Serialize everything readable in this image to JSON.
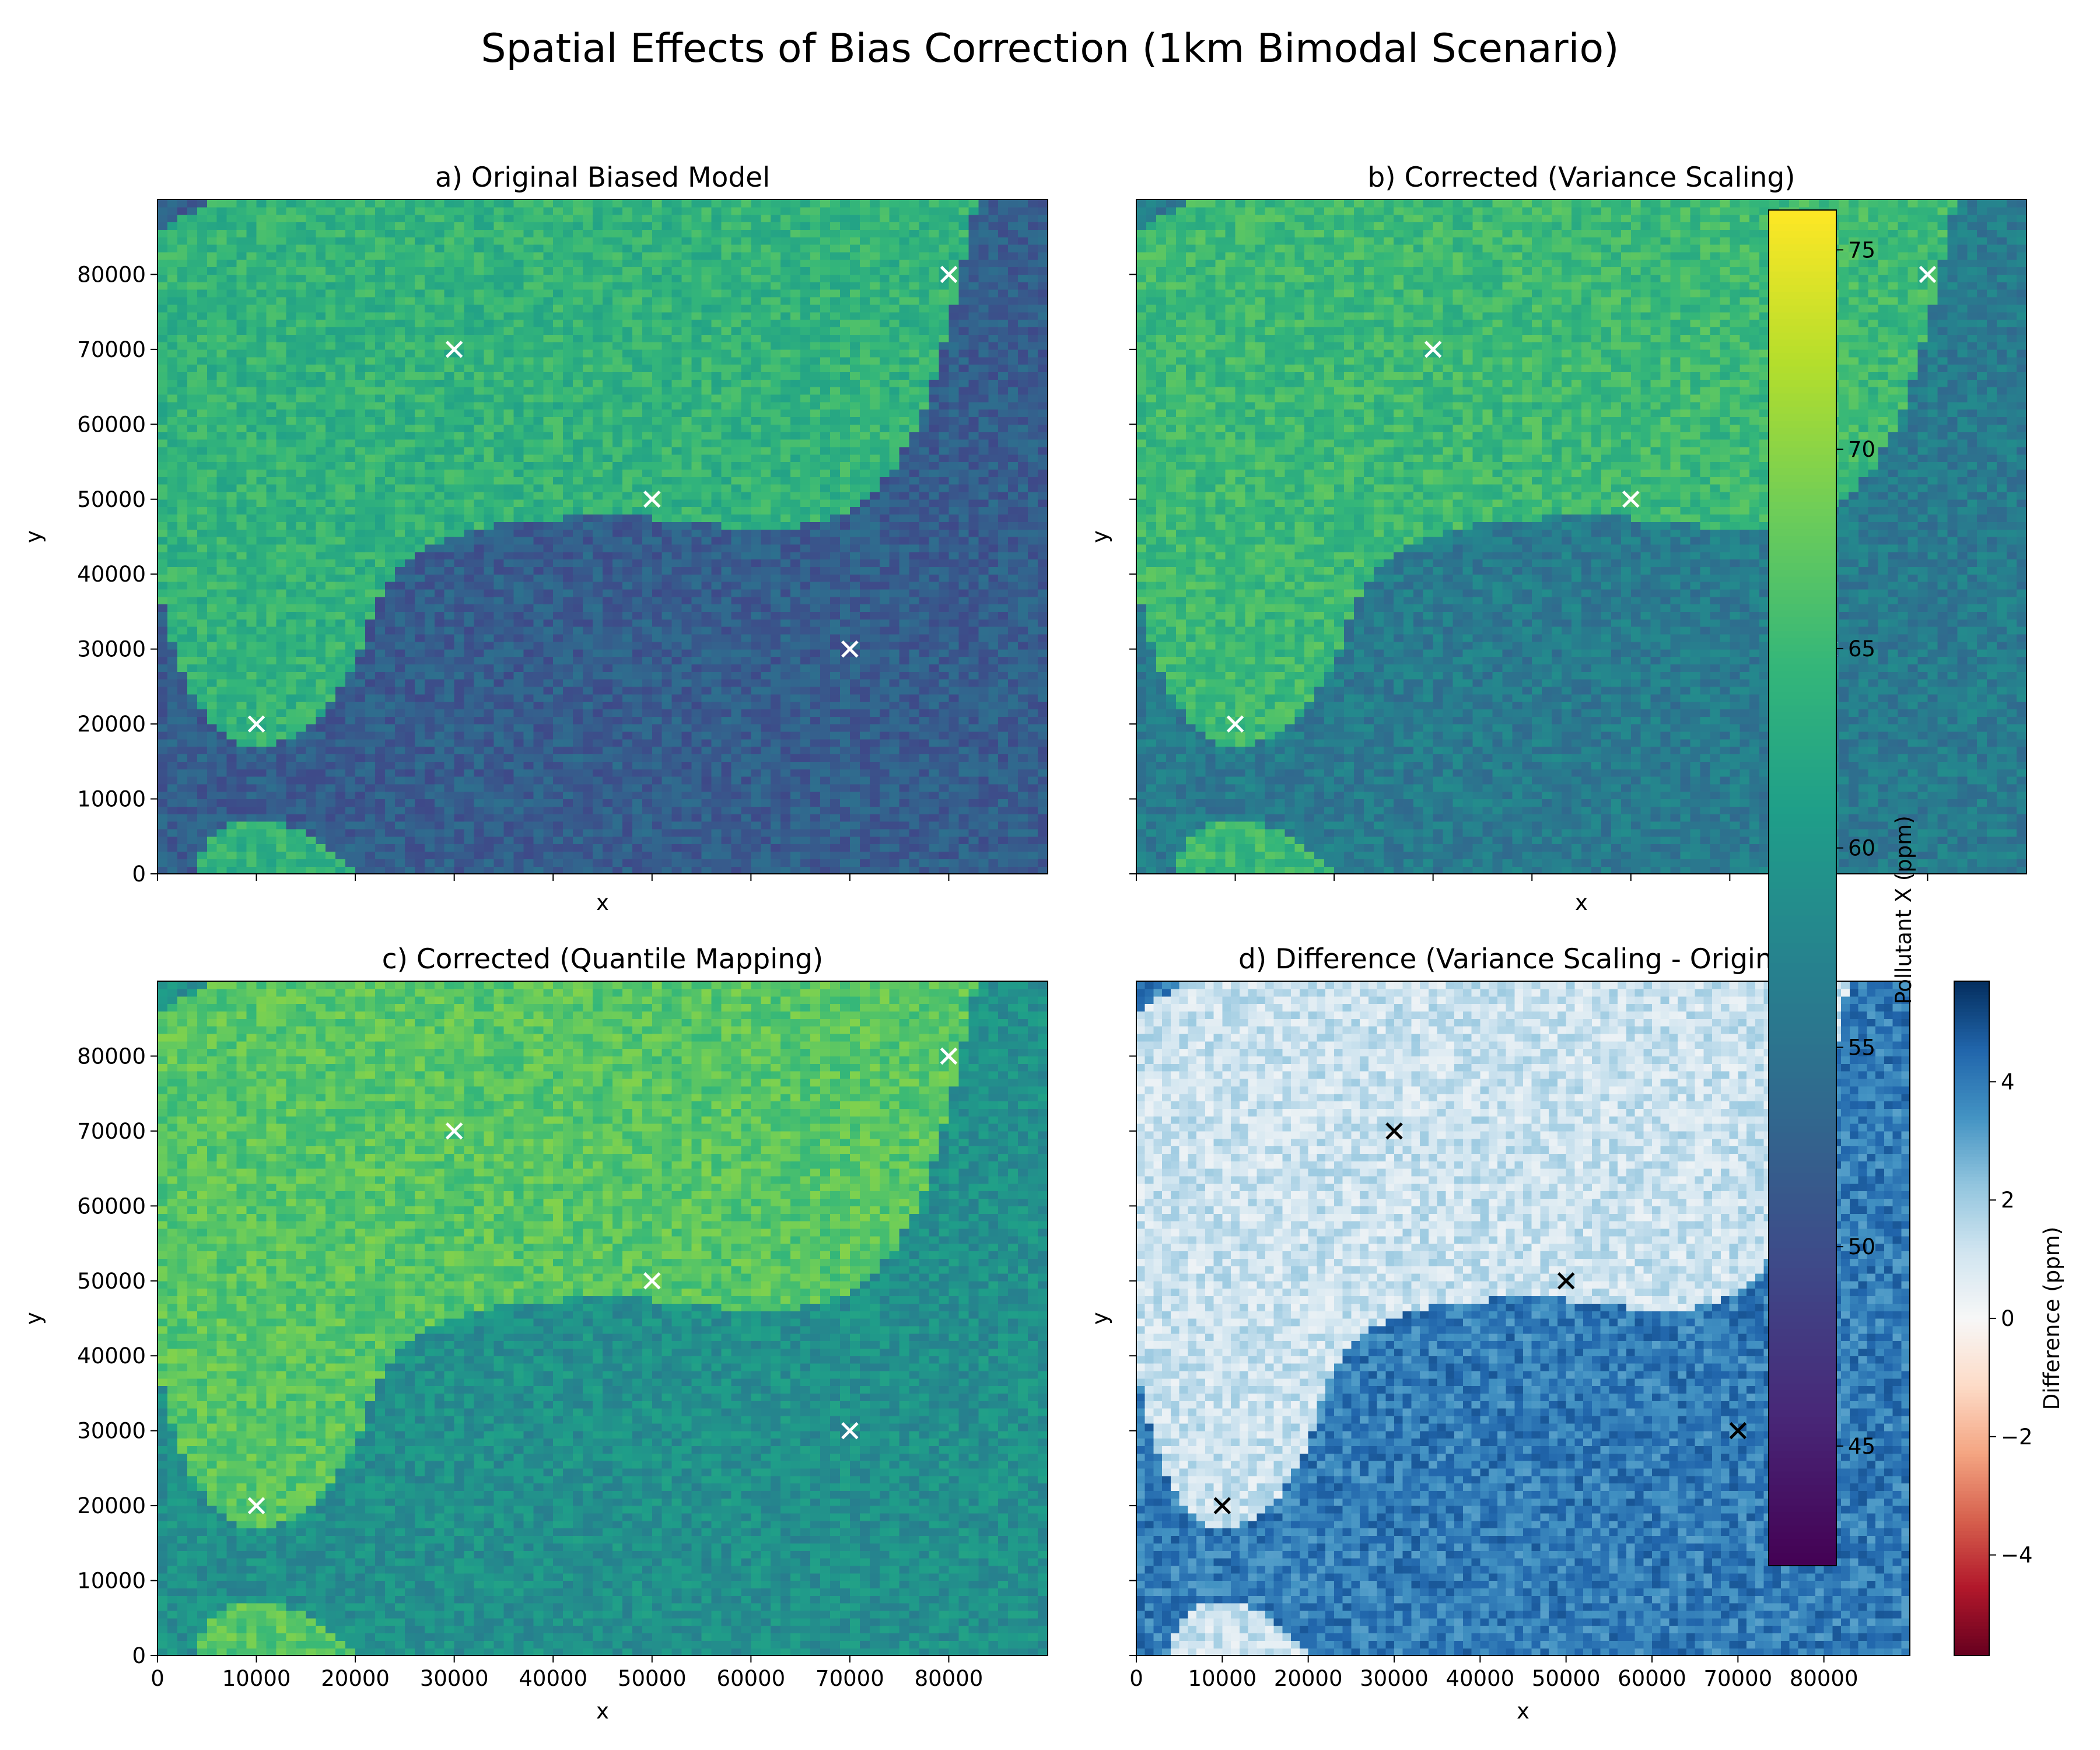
{
  "chart_data": {
    "title": "Spatial Effects of Bias Correction (1km Bimodal Scenario)",
    "type": "heatmap",
    "x_range": [
      0,
      90000
    ],
    "y_range": [
      0,
      90000
    ],
    "x_ticks": [
      "0",
      "10000",
      "20000",
      "30000",
      "40000",
      "50000",
      "60000",
      "70000",
      "80000"
    ],
    "y_ticks": [
      "0",
      "10000",
      "20000",
      "30000",
      "40000",
      "50000",
      "60000",
      "70000",
      "80000"
    ],
    "sharex": true,
    "sharey": true,
    "grid": false,
    "panels": [
      {
        "title": "a) Original Biased Model",
        "xlabel": "x",
        "ylabel": "y",
        "colormap": "viridis",
        "low_mode_value": 52,
        "high_mode_value": 64,
        "marker_color": "#ffffff",
        "markers": [
          [
            80000,
            80000
          ],
          [
            30000,
            70000
          ],
          [
            50000,
            50000
          ],
          [
            70000,
            30000
          ],
          [
            10000,
            20000
          ]
        ]
      },
      {
        "title": "b) Corrected (Variance Scaling)",
        "xlabel": "x",
        "ylabel": "y",
        "colormap": "viridis",
        "low_mode_value": 56,
        "high_mode_value": 65,
        "marker_color": "#ffffff",
        "markers": [
          [
            80000,
            80000
          ],
          [
            30000,
            70000
          ],
          [
            50000,
            50000
          ],
          [
            70000,
            30000
          ],
          [
            10000,
            20000
          ]
        ]
      },
      {
        "title": "c) Corrected (Quantile Mapping)",
        "xlabel": "x",
        "ylabel": "y",
        "colormap": "viridis",
        "low_mode_value": 59,
        "high_mode_value": 67,
        "marker_color": "#ffffff",
        "markers": [
          [
            80000,
            80000
          ],
          [
            30000,
            70000
          ],
          [
            50000,
            50000
          ],
          [
            70000,
            30000
          ],
          [
            10000,
            20000
          ]
        ]
      },
      {
        "title": "d) Difference (Variance Scaling - Original)",
        "xlabel": "x",
        "ylabel": "y",
        "colormap": "RdBu",
        "low_mode_value": 4,
        "high_mode_value": 1.2,
        "marker_color": "#000000",
        "markers": [
          [
            80000,
            80000
          ],
          [
            30000,
            70000
          ],
          [
            50000,
            50000
          ],
          [
            70000,
            30000
          ],
          [
            10000,
            20000
          ]
        ]
      }
    ],
    "colorbars": [
      {
        "label": "Pollutant X (ppm)",
        "colormap": "viridis",
        "range": [
          42,
          76
        ],
        "ticks": [
          "45",
          "50",
          "55",
          "60",
          "65",
          "70",
          "75"
        ]
      },
      {
        "label": "Difference (ppm)",
        "colormap": "RdBu",
        "range": [
          -5.7,
          5.7
        ],
        "ticks": [
          "−4",
          "−2",
          "0",
          "2",
          "4"
        ]
      }
    ]
  }
}
